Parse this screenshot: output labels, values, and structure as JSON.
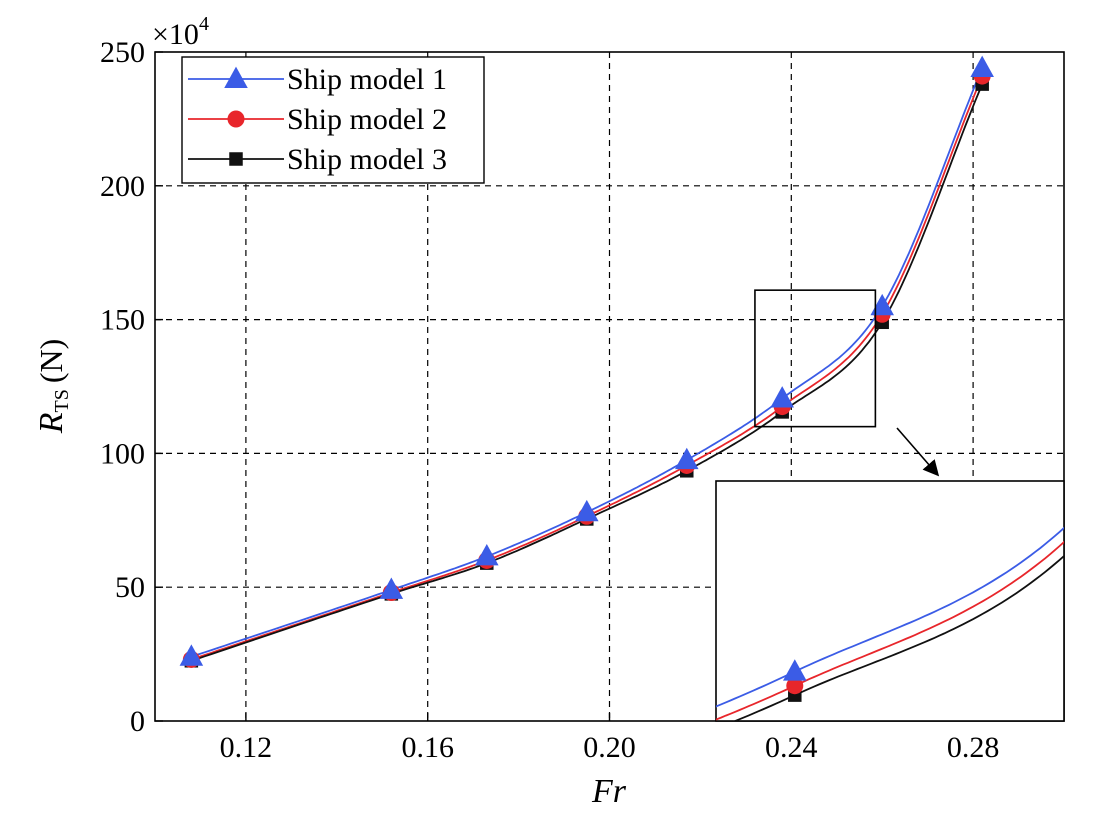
{
  "chart_data": {
    "type": "line",
    "title": "",
    "xlabel": "Fr",
    "ylabel_main": "R",
    "ylabel_sub": "TS",
    "ylabel_unit": "(N)",
    "y_multiplier": {
      "base": "×10",
      "exp": "4"
    },
    "xlim": [
      0.1,
      0.3
    ],
    "ylim": [
      0,
      250
    ],
    "xticks": [
      0.12,
      0.16,
      0.2,
      0.24,
      0.28
    ],
    "xtick_labels": [
      "0.12",
      "0.16",
      "0.20",
      "0.24",
      "0.28"
    ],
    "yticks": [
      0,
      50,
      100,
      150,
      200,
      250
    ],
    "ytick_labels": [
      "0",
      "50",
      "100",
      "150",
      "200",
      "250"
    ],
    "grid": true,
    "legend_position": "top-left",
    "x": [
      0.108,
      0.152,
      0.173,
      0.195,
      0.217,
      0.238,
      0.26,
      0.282
    ],
    "series": [
      {
        "name": "Ship model 1",
        "color": "#3b5ce6",
        "marker": "triangle",
        "values": [
          24,
          49,
          61.5,
          78,
          97.5,
          120.5,
          155,
          244
        ]
      },
      {
        "name": "Ship model 2",
        "color": "#e8262b",
        "marker": "circle",
        "values": [
          23,
          48,
          60,
          76.5,
          95.5,
          117.5,
          152,
          241
        ]
      },
      {
        "name": "Ship model 3",
        "color": "#111111",
        "marker": "square",
        "values": [
          22.5,
          47.5,
          59,
          75.5,
          93.5,
          115.5,
          149,
          238
        ]
      }
    ],
    "inset": {
      "type": "zoom",
      "xlim": [
        0.232,
        0.2585
      ],
      "ylim": [
        110,
        161
      ]
    }
  }
}
